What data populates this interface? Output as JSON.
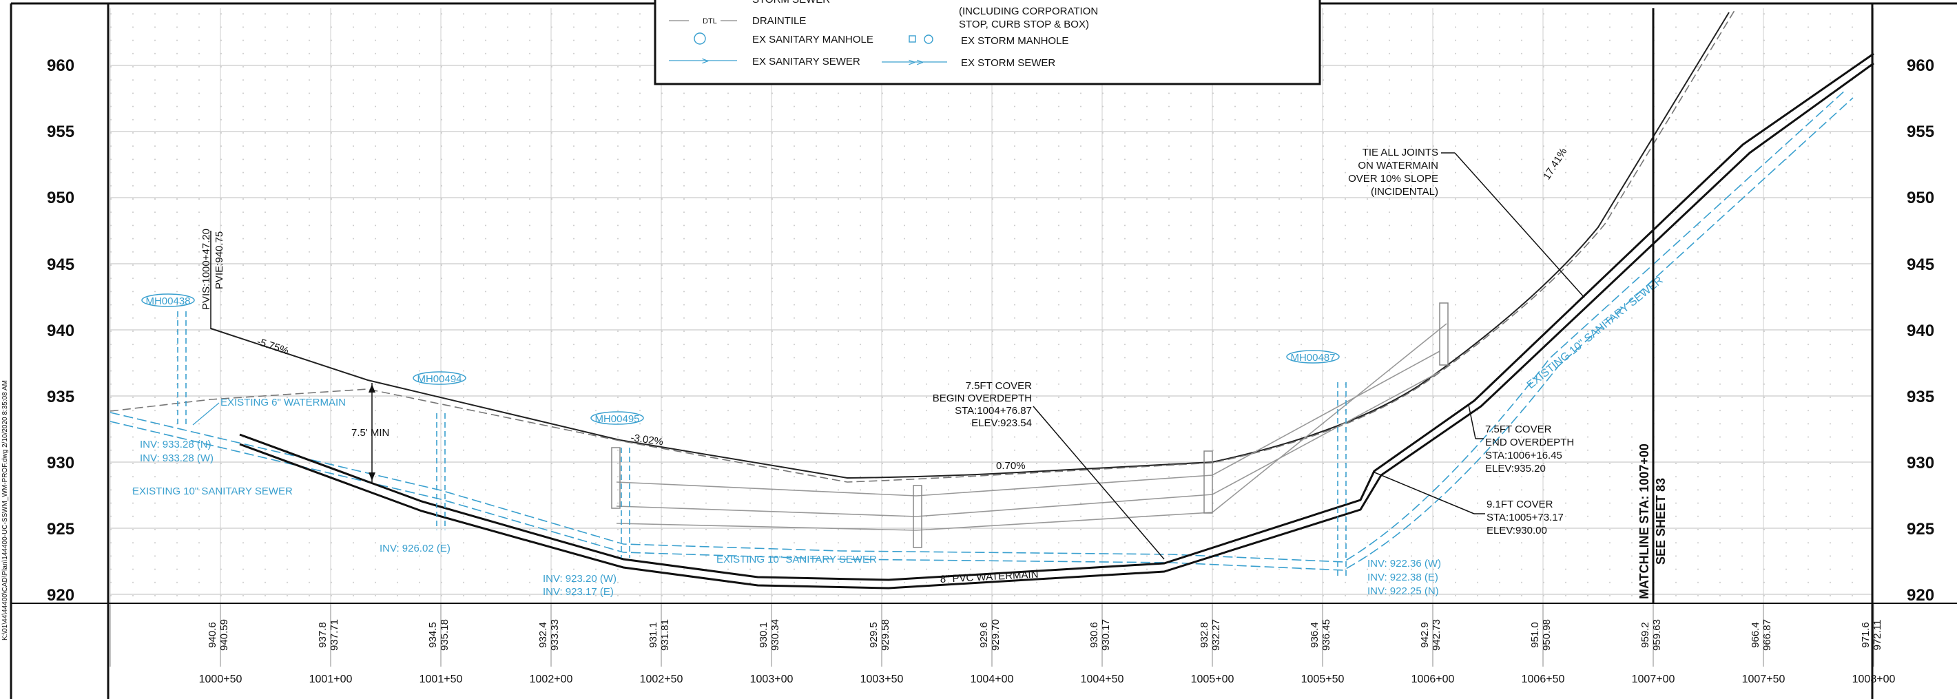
{
  "elevation_labels": [
    "960",
    "955",
    "950",
    "945",
    "940",
    "935",
    "930",
    "925",
    "920"
  ],
  "station_labels": [
    "1000+50",
    "1001+00",
    "1001+50",
    "1002+00",
    "1002+50",
    "1003+00",
    "1003+50",
    "1004+00",
    "1004+50",
    "1005+00",
    "1005+50",
    "1006+00",
    "1006+50",
    "1007+00",
    "1007+50",
    "1008+00"
  ],
  "bottom_elevations": [
    [
      "940.6",
      "940.59"
    ],
    [
      "937.8",
      "937.71"
    ],
    [
      "934.5",
      "935.18"
    ],
    [
      "932.4",
      "933.33"
    ],
    [
      "931.1",
      "931.81"
    ],
    [
      "930.1",
      "930.34"
    ],
    [
      "929.5",
      "929.58"
    ],
    [
      "929.6",
      "929.70"
    ],
    [
      "930.6",
      "930.17"
    ],
    [
      "932.8",
      "932.27"
    ],
    [
      "936.4",
      "936.45"
    ],
    [
      "942.9",
      "942.73"
    ],
    [
      "951.0",
      "950.98"
    ],
    [
      "959.2",
      "959.63"
    ],
    [
      "966.4",
      "966.87"
    ],
    [
      "971.6",
      "972.11"
    ]
  ],
  "legend": {
    "row0_left": "STORM SEWER",
    "row1_left_code": "DTL",
    "row1_left": "DRAINTILE",
    "row1_right_line1": "(INCLUDING CORPORATION",
    "row1_right_line2": "STOP, CURB STOP & BOX)",
    "row2_left": "EX SANITARY MANHOLE",
    "row2_right": "EX STORM MANHOLE",
    "row3_left": "EX SANITARY SEWER",
    "row3_right": "EX STORM SEWER"
  },
  "manholes": [
    "MH00438",
    "MH00494",
    "MH00495",
    "MH00487"
  ],
  "pvi": {
    "sta": "PVIS:1000+47.20",
    "elev": "PVIE:940.75"
  },
  "grades": {
    "g1": "-5.75%",
    "g2": "-3.02%",
    "g3": "0.70%",
    "g4": "17.41%"
  },
  "notes": {
    "min_cover": "7.5' MIN",
    "existing_watermain": "EXISTING 6\" WATERMAIN",
    "inv_left_1": "INV: 933.28 (N)",
    "inv_left_2": "INV: 933.28 (W)",
    "existing_sanitary_left": "EXISTING 10\" SANITARY SEWER",
    "inv_mid": "INV: 926.02 (E)",
    "inv_a1": "INV: 923.20 (W)",
    "inv_a2": "INV: 923.17 (E)",
    "existing_sanitary_mid": "EXISTING 10\" SANITARY SEWER",
    "watermain": "8\" PVC  WATERMAIN",
    "begin_overdepth": [
      "7.5FT COVER",
      "BEGIN OVERDEPTH",
      "STA:1004+76.87",
      "ELEV:923.54"
    ],
    "tie_joints": [
      "TIE ALL JOINTS",
      "ON WATERMAIN",
      "OVER 10% SLOPE",
      "(INCIDENTAL)"
    ],
    "end_overdepth": [
      "7.5FT COVER",
      "END OVERDEPTH",
      "STA:1006+16.45",
      "ELEV:935.20"
    ],
    "cover_91": [
      "9.1FT COVER",
      "STA:1005+73.17",
      "ELEV:930.00"
    ],
    "inv_right": [
      "INV: 922.36 (W)",
      "INV: 922.38 (E)",
      "INV: 922.25 (N)"
    ],
    "existing_sanitary_right": "EXISTING 10\" SANITARY SEWER",
    "matchline": "MATCHLINE STA: 1007+00",
    "see_sheet": "SEE SHEET 83",
    "file_path": "K:\\01\\44\\44400\\CAD\\Plan\\144400-UC-SSWM_WM-PROF.dwg  2/10/2020 8:35:08 AM"
  }
}
